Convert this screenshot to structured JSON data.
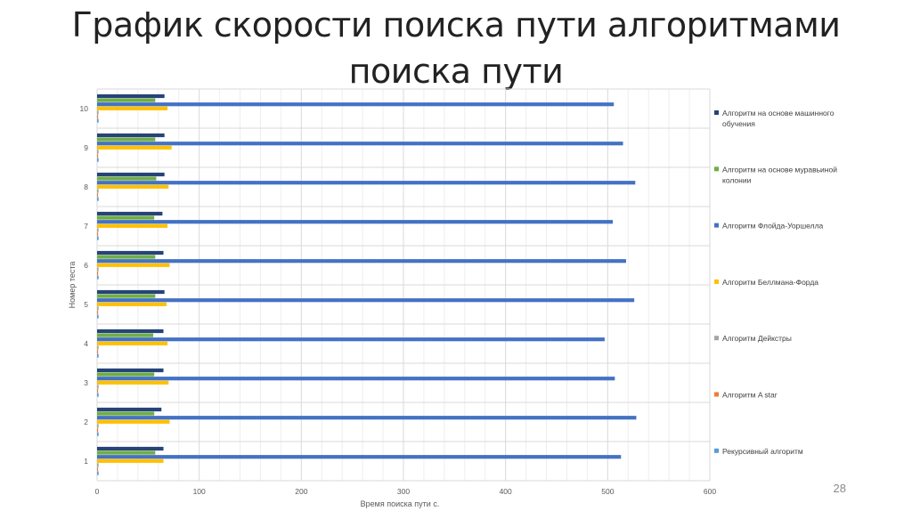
{
  "slide": {
    "title_line1": "График скорости поиска пути алгоритмами",
    "title_line2": "поиска пути",
    "page_number": "28"
  },
  "chart_data": {
    "type": "bar",
    "orientation": "horizontal",
    "xlabel": "Время поиска пути с.",
    "ylabel": "Номер теста",
    "xlim": [
      0,
      600
    ],
    "x_ticks": [
      "0",
      "100",
      "200",
      "300",
      "400",
      "500",
      "600"
    ],
    "categories": [
      "1",
      "2",
      "3",
      "4",
      "5",
      "6",
      "7",
      "8",
      "9",
      "10"
    ],
    "grid": "vertical",
    "legend_position": "right",
    "series": [
      {
        "name": "Рекурсивный алгоритм",
        "color": "#5B9BD5",
        "values": [
          1.5,
          1.5,
          1.5,
          1.5,
          1.5,
          1.5,
          1.5,
          1.5,
          1.5,
          1.5
        ]
      },
      {
        "name": "Алгоритм A star",
        "color": "#ED7D31",
        "values": [
          1,
          1,
          1,
          1,
          1,
          1,
          1,
          1,
          1,
          1
        ]
      },
      {
        "name": "Алгоритм Дейкстры",
        "color": "#A5A5A5",
        "values": [
          1.5,
          1.5,
          1.5,
          1.5,
          1.5,
          1.5,
          1.5,
          1.5,
          1.5,
          1.5
        ]
      },
      {
        "name": "Алгоритм Беллмана-Форда",
        "color": "#FFC000",
        "values": [
          65,
          71,
          70,
          69,
          68,
          71,
          69,
          70,
          73,
          69
        ]
      },
      {
        "name": "Алгоритм Флойда-Уоршелла",
        "color": "#4472C4",
        "values": [
          513,
          528,
          507,
          497,
          526,
          518,
          505,
          527,
          515,
          506
        ]
      },
      {
        "name": "Алгоритм на основе муравьиной колонии",
        "color": "#70AD47",
        "values": [
          57,
          56,
          56,
          55,
          57,
          57,
          56,
          58,
          57,
          57
        ]
      },
      {
        "name": "Алгоритм на основе машинного обучения",
        "color": "#264478",
        "values": [
          65,
          63,
          65,
          65,
          66,
          65,
          64,
          66,
          66,
          66
        ]
      }
    ]
  }
}
